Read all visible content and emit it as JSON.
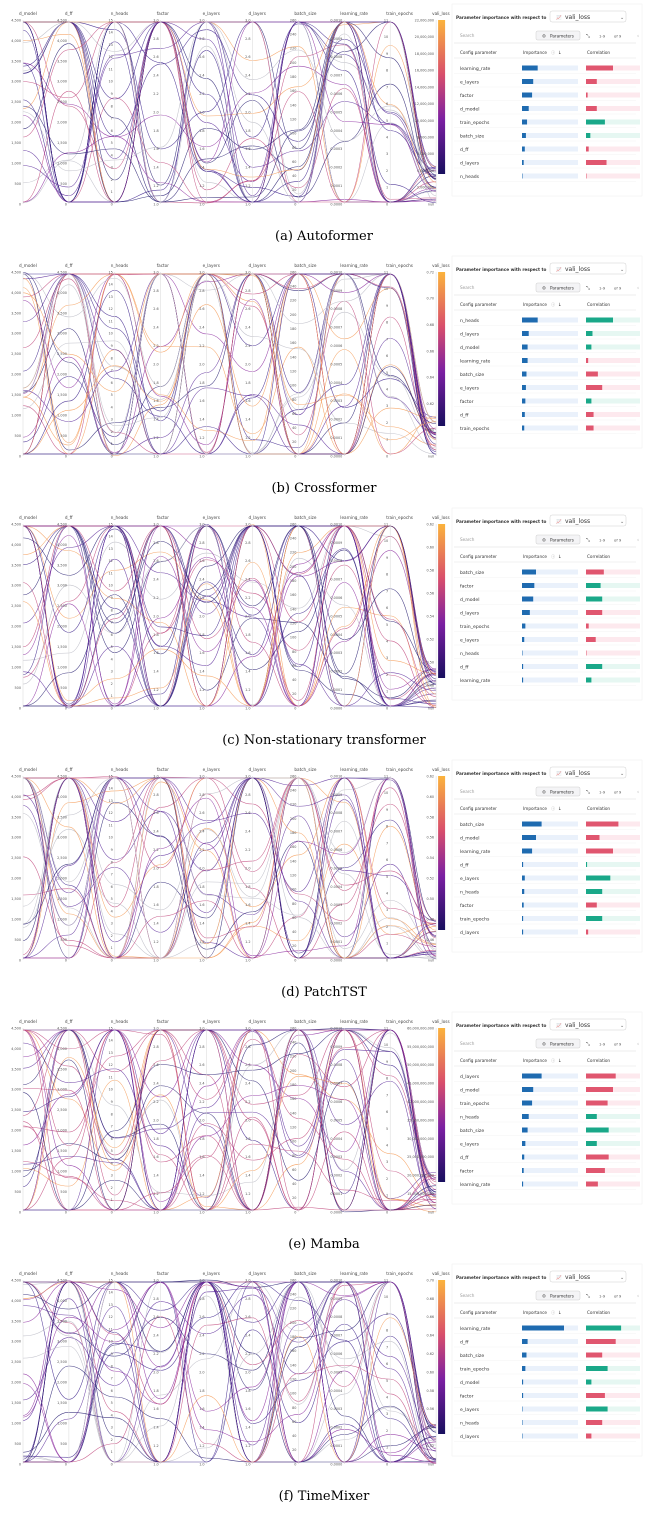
{
  "common": {
    "axes": [
      "d_model",
      "d_ff",
      "n_heads",
      "factor",
      "e_layers",
      "d_layers",
      "batch_size",
      "learning_rate",
      "train_epochs",
      "vali_loss"
    ],
    "panel_title": "Parameter importance with respect to",
    "metric": "vali_loss",
    "search_placeholder": "Search",
    "parameters_button": "Parameters",
    "pagination": "1-9",
    "of_label": "of 9",
    "col_config": "Config parameter",
    "col_importance": "Importance",
    "col_correlation": "Correlation",
    "sort_icon": "arrow-down-icon",
    "info_icon": "info-icon",
    "colors": {
      "importance": "#1f6bb0",
      "positive": "#e0566f",
      "negative": "#1aa889",
      "lines_dark": "#231a6e",
      "lines_mid": "#8b2a9f",
      "lines_light": "#f49a55"
    },
    "ticks": {
      "d_model": [
        "0",
        "500",
        "1,000",
        "1,500",
        "2,000",
        "2,500",
        "3,000",
        "3,500",
        "4,000",
        "4,500"
      ],
      "d_ff": [
        "0",
        "500",
        "1,000",
        "1,500",
        "2,000",
        "2,500",
        "3,000",
        "3,500",
        "4,000",
        "4,500"
      ],
      "n_heads": [
        "0",
        "1",
        "2",
        "3",
        "4",
        "5",
        "6",
        "7",
        "8",
        "9",
        "10",
        "11",
        "12",
        "13",
        "14",
        "15"
      ],
      "factor": [
        "1.0",
        "1.2",
        "1.4",
        "1.6",
        "1.8",
        "2.0",
        "2.2",
        "2.4",
        "2.6",
        "2.8",
        "3.0"
      ],
      "e_layers": [
        "1.0",
        "1.2",
        "1.4",
        "1.6",
        "1.8",
        "2.0",
        "2.2",
        "2.4",
        "2.6",
        "2.8",
        "3.0"
      ],
      "d_layers": [
        "1.0",
        "1.2",
        "1.4",
        "1.6",
        "1.8",
        "2.0",
        "2.2",
        "2.4",
        "2.6",
        "2.8",
        "3.0"
      ],
      "batch_size": [
        "0",
        "20",
        "40",
        "60",
        "80",
        "100",
        "120",
        "140",
        "160",
        "180",
        "200",
        "220",
        "240",
        "260"
      ],
      "learning_rate": [
        "0.0000",
        "0.0001",
        "0.0002",
        "0.0003",
        "0.0004",
        "0.0005",
        "0.0006",
        "0.0007",
        "0.0008",
        "0.0009",
        "0.0010"
      ],
      "train_epochs": [
        "0",
        "1",
        "2",
        "3",
        "4",
        "5",
        "6",
        "7",
        "8",
        "9",
        "10",
        "11"
      ]
    }
  },
  "chart_data": [
    {
      "type": "parallel_coordinates",
      "caption": "(a) Autoformer",
      "vali_loss_ticks": [
        "null",
        "2,000,000",
        "4,000,000",
        "6,000,000",
        "8,000,000",
        "10,000,000",
        "12,000,000",
        "14,000,000",
        "16,000,000",
        "18,000,000",
        "20,000,000",
        "22,000,000"
      ],
      "importance": [
        {
          "param": "learning_rate",
          "importance": 0.28,
          "correlation": 0.5
        },
        {
          "param": "e_layers",
          "importance": 0.2,
          "correlation": 0.2
        },
        {
          "param": "factor",
          "importance": 0.18,
          "correlation": 0.03
        },
        {
          "param": "d_model",
          "importance": 0.12,
          "correlation": 0.2
        },
        {
          "param": "train_epochs",
          "importance": 0.09,
          "correlation": -0.35
        },
        {
          "param": "batch_size",
          "importance": 0.07,
          "correlation": -0.08
        },
        {
          "param": "d_ff",
          "importance": 0.05,
          "correlation": 0.05
        },
        {
          "param": "d_layers",
          "importance": 0.03,
          "correlation": 0.38
        },
        {
          "param": "n_heads",
          "importance": 0.0,
          "correlation": 0.0
        }
      ]
    },
    {
      "type": "parallel_coordinates",
      "caption": "(b) Crossformer",
      "vali_loss_ticks": [
        "null",
        "0.60",
        "0.62",
        "0.64",
        "0.66",
        "0.68",
        "0.70",
        "0.72"
      ],
      "importance": [
        {
          "param": "n_heads",
          "importance": 0.28,
          "correlation": -0.5
        },
        {
          "param": "d_layers",
          "importance": 0.12,
          "correlation": -0.12
        },
        {
          "param": "d_model",
          "importance": 0.1,
          "correlation": -0.1
        },
        {
          "param": "learning_rate",
          "importance": 0.1,
          "correlation": 0.04
        },
        {
          "param": "batch_size",
          "importance": 0.08,
          "correlation": 0.22
        },
        {
          "param": "e_layers",
          "importance": 0.07,
          "correlation": 0.3
        },
        {
          "param": "factor",
          "importance": 0.06,
          "correlation": -0.1
        },
        {
          "param": "d_ff",
          "importance": 0.05,
          "correlation": 0.14
        },
        {
          "param": "train_epochs",
          "importance": 0.04,
          "correlation": 0.14
        }
      ]
    },
    {
      "type": "parallel_coordinates",
      "caption": "(c) Non-stationary transformer",
      "vali_loss_ticks": [
        "null",
        "0.48",
        "0.50",
        "0.52",
        "0.54",
        "0.56",
        "0.58",
        "0.60",
        "0.62"
      ],
      "importance": [
        {
          "param": "batch_size",
          "importance": 0.25,
          "correlation": 0.33
        },
        {
          "param": "factor",
          "importance": 0.22,
          "correlation": -0.27
        },
        {
          "param": "d_model",
          "importance": 0.2,
          "correlation": -0.3
        },
        {
          "param": "d_layers",
          "importance": 0.14,
          "correlation": 0.3
        },
        {
          "param": "train_epochs",
          "importance": 0.06,
          "correlation": 0.05
        },
        {
          "param": "e_layers",
          "importance": 0.04,
          "correlation": 0.18
        },
        {
          "param": "n_heads",
          "importance": 0.0,
          "correlation": 0.0
        },
        {
          "param": "d_ff",
          "importance": 0.02,
          "correlation": -0.3
        },
        {
          "param": "learning_rate",
          "importance": 0.02,
          "correlation": -0.1
        }
      ]
    },
    {
      "type": "parallel_coordinates",
      "caption": "(d) PatchTST",
      "vali_loss_ticks": [
        "null",
        "0.46",
        "0.48",
        "0.50",
        "0.52",
        "0.54",
        "0.56",
        "0.58",
        "0.60",
        "0.62"
      ],
      "importance": [
        {
          "param": "batch_size",
          "importance": 0.35,
          "correlation": 0.6
        },
        {
          "param": "d_model",
          "importance": 0.25,
          "correlation": 0.25
        },
        {
          "param": "learning_rate",
          "importance": 0.18,
          "correlation": 0.5
        },
        {
          "param": "d_ff",
          "importance": 0.02,
          "correlation": -0.02
        },
        {
          "param": "e_layers",
          "importance": 0.05,
          "correlation": -0.45
        },
        {
          "param": "n_heads",
          "importance": 0.04,
          "correlation": -0.3
        },
        {
          "param": "factor",
          "importance": 0.03,
          "correlation": 0.2
        },
        {
          "param": "train_epochs",
          "importance": 0.02,
          "correlation": -0.3
        },
        {
          "param": "d_layers",
          "importance": 0.02,
          "correlation": 0.04
        }
      ]
    },
    {
      "type": "parallel_coordinates",
      "caption": "(e) Mamba",
      "vali_loss_ticks": [
        "null",
        "15,000,000,000",
        "20,000,000,000",
        "25,000,000,000",
        "30,000,000,000",
        "35,000,000,000",
        "40,000,000,000",
        "45,000,000,000",
        "50,000,000,000",
        "55,000,000,000",
        "60,000,000,000"
      ],
      "importance": [
        {
          "param": "d_layers",
          "importance": 0.35,
          "correlation": 0.55
        },
        {
          "param": "d_model",
          "importance": 0.2,
          "correlation": 0.5
        },
        {
          "param": "train_epochs",
          "importance": 0.18,
          "correlation": 0.4
        },
        {
          "param": "n_heads",
          "importance": 0.12,
          "correlation": -0.2
        },
        {
          "param": "batch_size",
          "importance": 0.1,
          "correlation": -0.42
        },
        {
          "param": "e_layers",
          "importance": 0.06,
          "correlation": -0.2
        },
        {
          "param": "d_ff",
          "importance": 0.04,
          "correlation": 0.42
        },
        {
          "param": "factor",
          "importance": 0.03,
          "correlation": 0.35
        },
        {
          "param": "learning_rate",
          "importance": 0.02,
          "correlation": 0.22
        }
      ]
    },
    {
      "type": "parallel_coordinates",
      "caption": "(f) TimeMixer",
      "vali_loss_ticks": [
        "null",
        "0.52",
        "0.54",
        "0.56",
        "0.58",
        "0.60",
        "0.62",
        "0.64",
        "0.66",
        "0.68",
        "0.70"
      ],
      "importance": [
        {
          "param": "learning_rate",
          "importance": 0.75,
          "correlation": -0.65
        },
        {
          "param": "d_ff",
          "importance": 0.1,
          "correlation": 0.55
        },
        {
          "param": "batch_size",
          "importance": 0.08,
          "correlation": 0.3
        },
        {
          "param": "train_epochs",
          "importance": 0.06,
          "correlation": -0.4
        },
        {
          "param": "d_model",
          "importance": 0.02,
          "correlation": -0.1
        },
        {
          "param": "factor",
          "importance": 0.02,
          "correlation": 0.35
        },
        {
          "param": "e_layers",
          "importance": 0.0,
          "correlation": -0.4
        },
        {
          "param": "n_heads",
          "importance": 0.0,
          "correlation": 0.3
        },
        {
          "param": "d_layers",
          "importance": 0.0,
          "correlation": 0.1
        }
      ]
    }
  ]
}
